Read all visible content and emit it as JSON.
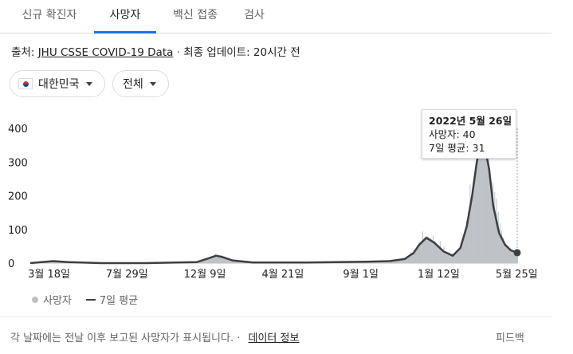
{
  "tabs": [
    "신규 확진자",
    "사망자",
    "백신 접종",
    "검사"
  ],
  "source": {
    "prefix": "출처:",
    "link": "JHU CSSE COVID-19 Data",
    "separator": "·",
    "updated": "최종 업데이트: 20시간 전"
  },
  "filters": {
    "country": "대한민국",
    "range": "전체"
  },
  "tooltip": {
    "date": "2022년 5월 26일",
    "deaths": "사망자: 40",
    "avg": "7일 평균: 31"
  },
  "legend": {
    "deaths": "사망자",
    "avg": "7일 평균"
  },
  "footer": {
    "note": "각 날짜에는 전날 이후 보고된 사망자가 표시됩니다.",
    "separator": "·",
    "link": "데이터 정보",
    "feedback": "피드백"
  },
  "colors": {
    "bars": "#bdc1c6",
    "line": "#3c4043",
    "active_tab": "#1a73e8"
  },
  "chart_data": {
    "type": "area",
    "ylim": [
      0,
      400
    ],
    "y_ticks": [
      0,
      100,
      200,
      300,
      400
    ],
    "x_tick_labels": [
      "3월 18일",
      "7월 29일",
      "12월 9일",
      "4월 21일",
      "9월 1일",
      "1월 12일",
      "5월 25일"
    ],
    "x_tick_dates": [
      "2020-03-18",
      "2020-07-29",
      "2020-12-09",
      "2021-04-21",
      "2021-09-01",
      "2022-01-12",
      "2022-05-25"
    ],
    "x_range": [
      "2020-02-15",
      "2022-05-26"
    ],
    "series": [
      {
        "name": "7일 평균",
        "points": [
          [
            "2020-02-15",
            0
          ],
          [
            "2020-03-05",
            3
          ],
          [
            "2020-03-25",
            6
          ],
          [
            "2020-04-20",
            3
          ],
          [
            "2020-06-15",
            0
          ],
          [
            "2020-08-30",
            0
          ],
          [
            "2020-11-25",
            3
          ],
          [
            "2020-12-15",
            14
          ],
          [
            "2020-12-28",
            22
          ],
          [
            "2021-01-08",
            18
          ],
          [
            "2021-01-25",
            8
          ],
          [
            "2021-03-01",
            2
          ],
          [
            "2021-06-01",
            2
          ],
          [
            "2021-09-10",
            4
          ],
          [
            "2021-10-20",
            6
          ],
          [
            "2021-11-15",
            12
          ],
          [
            "2021-11-30",
            30
          ],
          [
            "2021-12-10",
            55
          ],
          [
            "2021-12-22",
            75
          ],
          [
            "2022-01-05",
            60
          ],
          [
            "2022-01-20",
            35
          ],
          [
            "2022-02-05",
            22
          ],
          [
            "2022-02-18",
            45
          ],
          [
            "2022-03-01",
            110
          ],
          [
            "2022-03-10",
            200
          ],
          [
            "2022-03-18",
            300
          ],
          [
            "2022-03-24",
            355
          ],
          [
            "2022-03-31",
            350
          ],
          [
            "2022-04-08",
            280
          ],
          [
            "2022-04-15",
            170
          ],
          [
            "2022-04-25",
            90
          ],
          [
            "2022-05-05",
            55
          ],
          [
            "2022-05-15",
            38
          ],
          [
            "2022-05-26",
            31
          ]
        ]
      }
    ],
    "highlight": {
      "date": "2022-05-26",
      "value": 31
    }
  }
}
